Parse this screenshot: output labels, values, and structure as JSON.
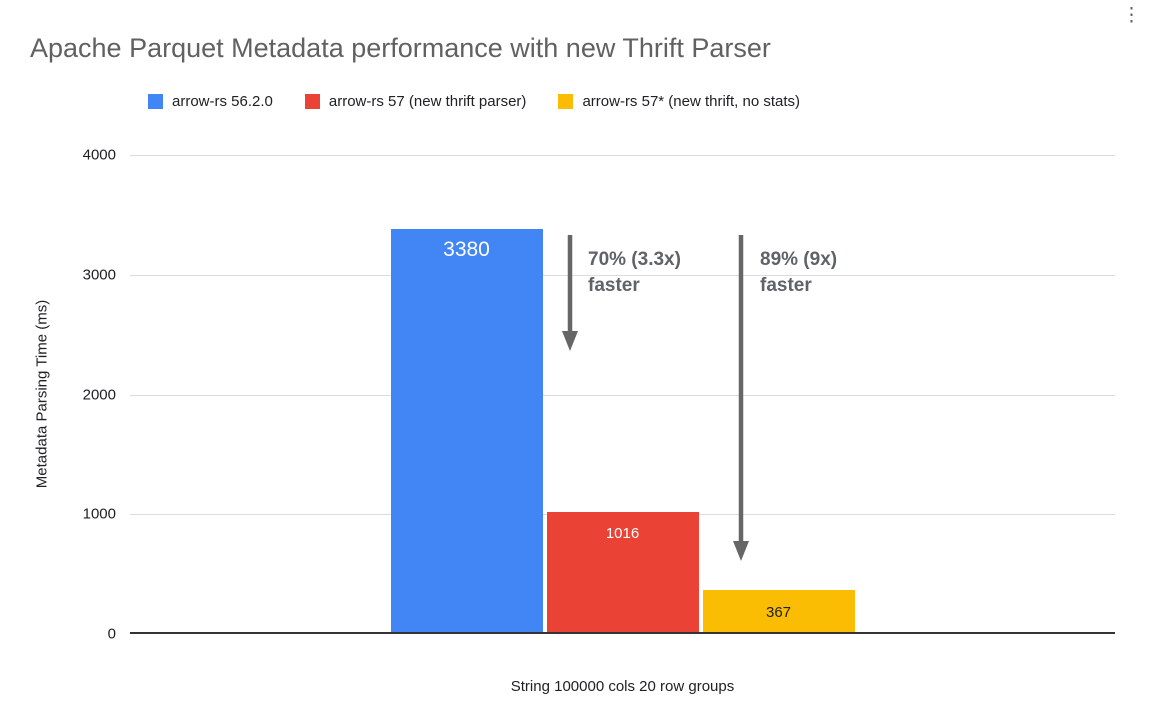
{
  "icons": {
    "kebab_menu": "⋮"
  },
  "chart_data": {
    "type": "bar",
    "title": "Apache Parquet Metadata performance with new Thrift Parser",
    "categories": [
      "String 100000 cols 20 row groups"
    ],
    "series": [
      {
        "name": "arrow-rs 56.2.0",
        "color": "#4285F4",
        "values": [
          3380
        ]
      },
      {
        "name": "arrow-rs 57 (new thrift parser)",
        "color": "#EA4335",
        "values": [
          1016
        ]
      },
      {
        "name": "arrow-rs 57* (new thrift, no stats)",
        "color": "#FBBC04",
        "values": [
          367
        ]
      }
    ],
    "xlabel": "String 100000 cols 20 row groups",
    "ylabel": "Metadata Parsing Time (ms)",
    "ylim": [
      0,
      4000
    ],
    "yticks": [
      "0",
      "1000",
      "2000",
      "3000",
      "4000"
    ],
    "grid": true,
    "legend_position": "top",
    "annotations": [
      {
        "text": "70% (3.3x) faster"
      },
      {
        "text": "89% (9x) faster"
      }
    ],
    "annotation_arrow_color": "#666666"
  }
}
